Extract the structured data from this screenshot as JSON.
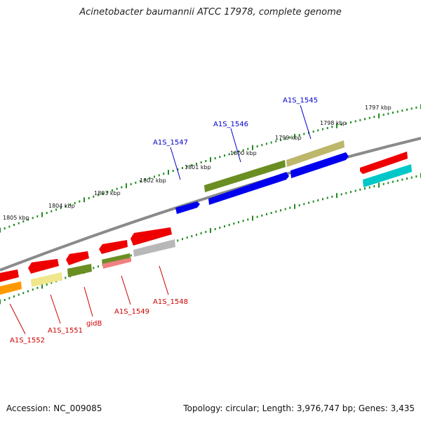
{
  "title": "Acinetobacter baumannii ATCC 17978, complete genome",
  "footer": {
    "accession": "Accession: NC_009085",
    "summary": "Topology: circular; Length: 3,976,747 bp; Genes: 3,435"
  },
  "colors": {
    "backbone": "#808080",
    "tick": "#228b22",
    "forward_label": "#0000cc",
    "reverse_label": "#cc0000"
  },
  "ruler": [
    {
      "label": "1797 kbp"
    },
    {
      "label": "1798 kbp"
    },
    {
      "label": "1799 kbp"
    },
    {
      "label": "1800 kbp"
    },
    {
      "label": "1801 kbp"
    },
    {
      "label": "1802 kbp"
    },
    {
      "label": "1803 kbp"
    },
    {
      "label": "1804 kbp"
    },
    {
      "label": "1805 kbp"
    }
  ],
  "gene_labels": [
    {
      "label": "A1S_1545",
      "strand": "forward"
    },
    {
      "label": "A1S_1546",
      "strand": "forward"
    },
    {
      "label": "A1S_1547",
      "strand": "forward"
    },
    {
      "label": "A1S_1548",
      "strand": "reverse"
    },
    {
      "label": "A1S_1549",
      "strand": "reverse"
    },
    {
      "label": "gidB",
      "strand": "reverse"
    },
    {
      "label": "A1S_1551",
      "strand": "reverse"
    },
    {
      "label": "A1S_1552",
      "strand": "reverse"
    }
  ]
}
